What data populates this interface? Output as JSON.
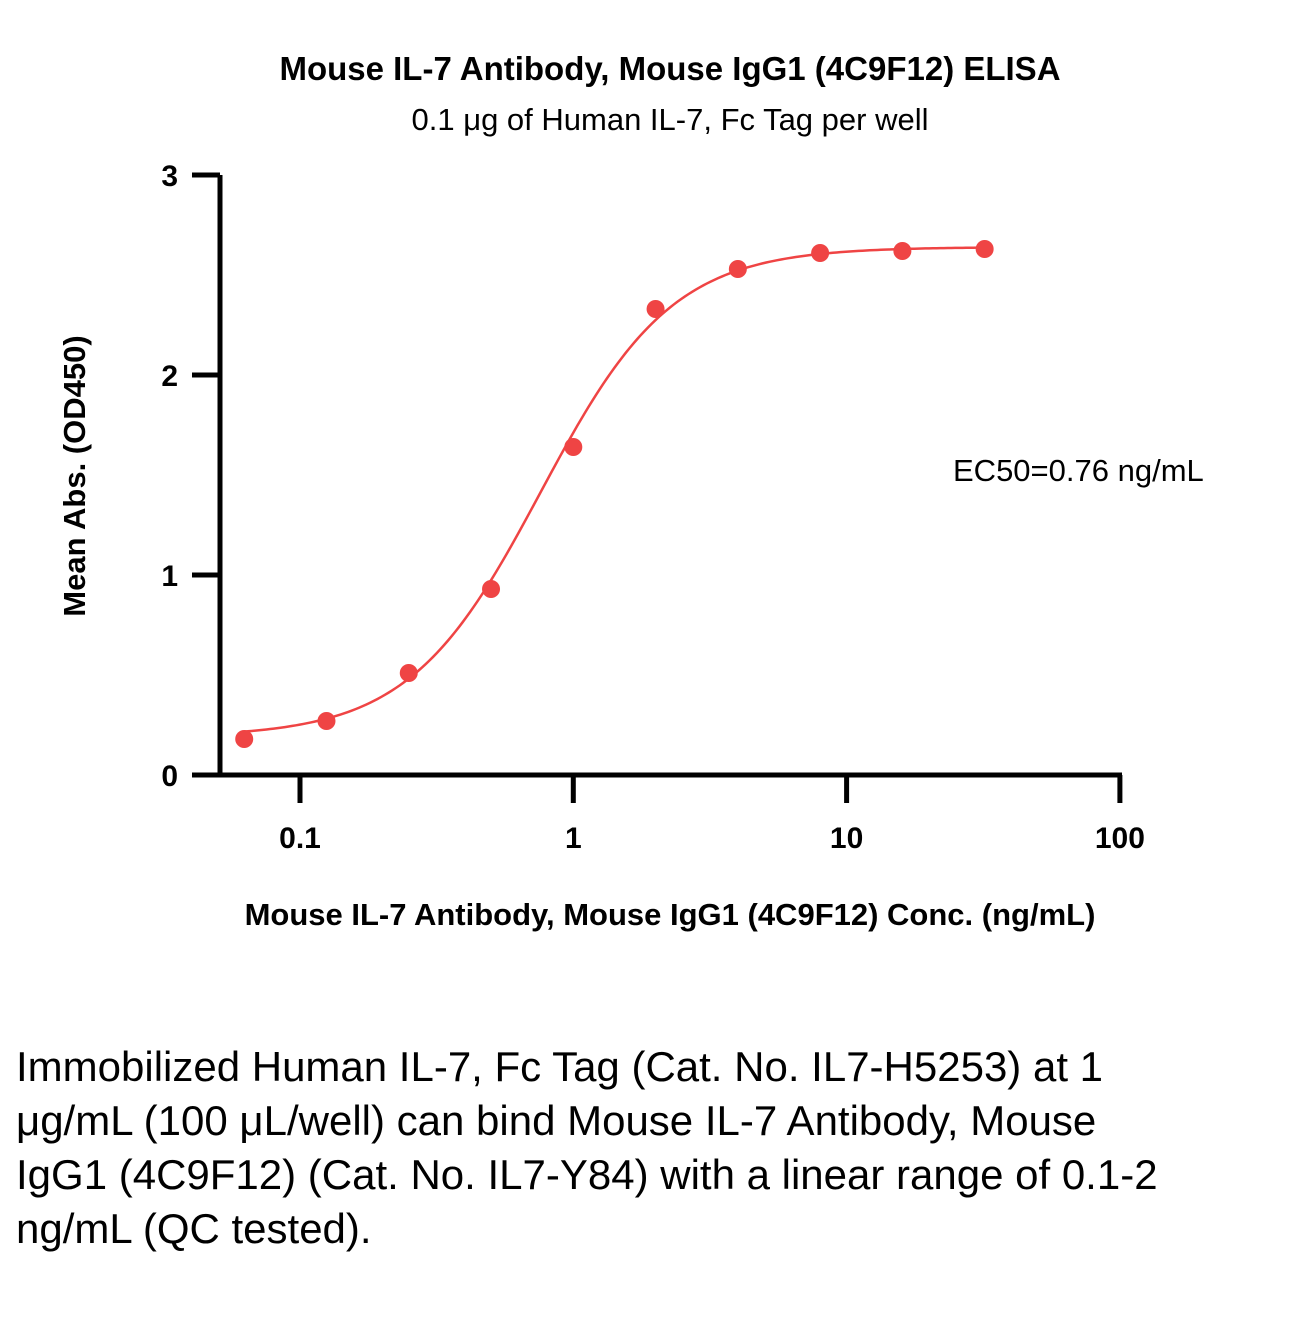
{
  "chart_data": {
    "type": "scatter",
    "title": "Mouse IL-7 Antibody, Mouse IgG1 (4C9F12) ELISA",
    "subtitle": "0.1 μg of Human IL-7, Fc Tag per well",
    "xlabel": "Mouse IL-7 Antibody, Mouse IgG1 (4C9F12) Conc. (ng/mL)",
    "ylabel": "Mean Abs. (OD450)",
    "x_scale": "log",
    "xlim": [
      0.05,
      100
    ],
    "ylim": [
      0,
      3
    ],
    "x_ticks": [
      0.1,
      1,
      10,
      100
    ],
    "x_tick_labels": [
      "0.1",
      "1",
      "10",
      "100"
    ],
    "y_ticks": [
      0,
      1,
      2,
      3
    ],
    "y_tick_labels": [
      "0",
      "1",
      "2",
      "3"
    ],
    "grid": false,
    "series_color": "#EF4444",
    "series": [
      {
        "x": [
          0.0625,
          0.125,
          0.25,
          0.5,
          1,
          2,
          4,
          8,
          16,
          32
        ],
        "y": [
          0.18,
          0.27,
          0.51,
          0.93,
          1.64,
          2.33,
          2.53,
          2.61,
          2.62,
          2.63
        ]
      }
    ],
    "fit": {
      "model": "4PL",
      "bottom": 0.19,
      "top": 2.64,
      "ec50": 0.76,
      "hill": 1.8
    },
    "annotation": "EC50=0.76 ng/mL"
  },
  "caption": "Immobilized Human IL-7, Fc Tag (Cat. No. IL7-H5253) at 1 μg/mL (100 μL/well) can bind Mouse IL-7 Antibody, Mouse IgG1 (4C9F12) (Cat. No. IL7-Y84) with a linear range of 0.1-2 ng/mL (QC tested)."
}
